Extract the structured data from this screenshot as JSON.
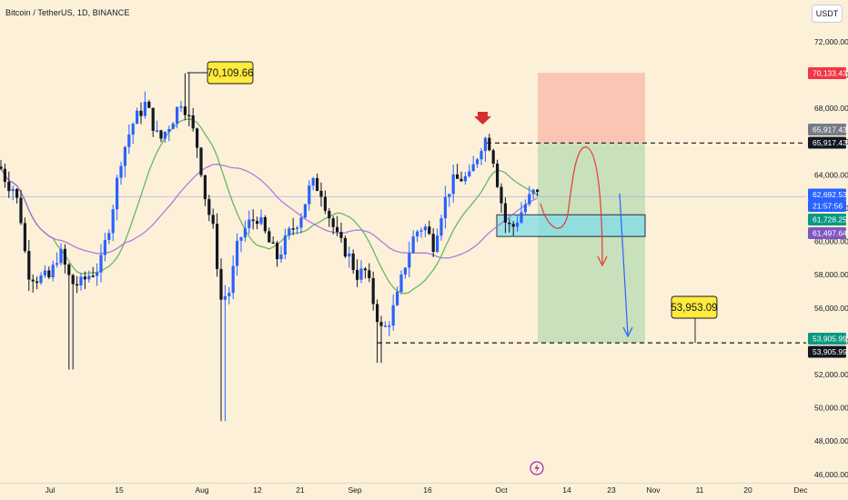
{
  "title": "Bitcoin / TetherUS, 1D, BINANCE",
  "currency": "USDT",
  "chart_data": {
    "type": "candlestick",
    "symbol": "BTC/USDT",
    "timeframe": "1D",
    "exchange": "BINANCE",
    "y_ticks": [
      "72,000.00",
      "70,000.00",
      "68,000.00",
      "66,000.00",
      "64,000.00",
      "62,000.00",
      "60,000.00",
      "58,000.00",
      "56,000.00",
      "54,000.00",
      "52,000.00",
      "50,000.00",
      "48,000.00",
      "46,000.00"
    ],
    "x_ticks": [
      "Jul",
      "15",
      "Aug",
      "12",
      "21",
      "Sep",
      "16",
      "Oct",
      "14",
      "23",
      "Nov",
      "11",
      "20",
      "Dec"
    ],
    "ylim": [
      45500,
      73300
    ],
    "callouts": [
      {
        "id": "high",
        "text": "70,109.66",
        "value": 70109.66
      },
      {
        "id": "low",
        "text": "53,953.09",
        "value": 53953.09
      }
    ],
    "price_labels": [
      {
        "text": "70,133.43",
        "value": 70133.43,
        "color": "#f23645",
        "fg": "#ffffff"
      },
      {
        "text": "65,917.43",
        "value": 65917.43,
        "color": "#787b86",
        "fg": "#ffffff"
      },
      {
        "text": "65,917.43",
        "value": 65917.43,
        "color": "#131722",
        "fg": "#ffffff"
      },
      {
        "text": "62,692.53",
        "value": 62692.53,
        "color": "#2962ff",
        "fg": "#ffffff"
      },
      {
        "text": "21:57:56",
        "value": 62692.53,
        "color": "#2962ff",
        "fg": "#ffffff"
      },
      {
        "text": "61,728.25",
        "value": 61728.25,
        "color": "#089981",
        "fg": "#ffffff"
      },
      {
        "text": "61,497.64",
        "value": 61497.64,
        "color": "#7e57c2",
        "fg": "#ffffff"
      },
      {
        "text": "53,905.99",
        "value": 53905.99,
        "color": "#089981",
        "fg": "#ffffff"
      },
      {
        "text": "53,905.99",
        "value": 53905.99,
        "color": "#131722",
        "fg": "#ffffff"
      }
    ],
    "levels": {
      "resistance": 65917.43,
      "support": 53905.99,
      "target_top": 70133.43
    },
    "demand_zone": [
      60300,
      61600
    ],
    "colors": {
      "up": "#2962ff",
      "down": "#131722",
      "ma_fast": "#4caf50",
      "ma_slow": "#9c6ade",
      "stop": "#f8a393",
      "profit": "#a5d6a7",
      "zone": "#80deea"
    }
  }
}
